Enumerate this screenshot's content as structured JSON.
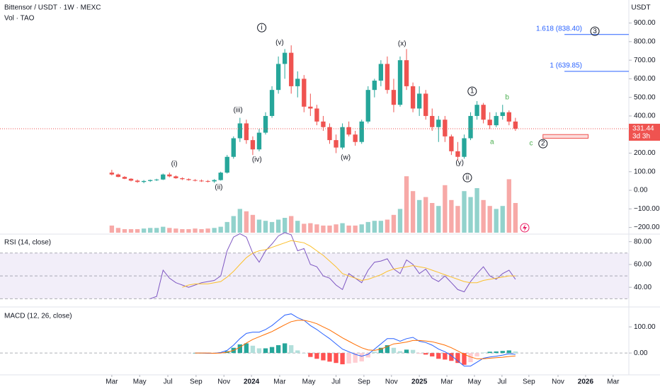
{
  "chart_data": {
    "type": "candlestick",
    "title": "Bittensor / USDT · 1W · MEXC",
    "subtitle": "Vol · TAO",
    "currency": "USDT",
    "xlim": [
      -34.9,
      161.4
    ],
    "xticks": [
      {
        "value": 0,
        "label": "Mar"
      },
      {
        "value": 8.7,
        "label": "May"
      },
      {
        "value": 17.5,
        "label": "Jul"
      },
      {
        "value": 26.3,
        "label": "Sep"
      },
      {
        "value": 35,
        "label": "Nov"
      },
      {
        "value": 43.6,
        "label": "2024"
      },
      {
        "value": 52.4,
        "label": "Mar"
      },
      {
        "value": 61.5,
        "label": "May"
      },
      {
        "value": 70,
        "label": "Jul"
      },
      {
        "value": 78.7,
        "label": "Sep"
      },
      {
        "value": 87.3,
        "label": "Nov"
      },
      {
        "value": 96,
        "label": "2025"
      },
      {
        "value": 104.6,
        "label": "Mar"
      },
      {
        "value": 113.2,
        "label": "May"
      },
      {
        "value": 121.8,
        "label": "Jul"
      },
      {
        "value": 130.2,
        "label": "Sep"
      },
      {
        "value": 139.3,
        "label": "Nov"
      },
      {
        "value": 147.9,
        "label": "2026"
      },
      {
        "value": 156.5,
        "label": "Mar"
      }
    ],
    "ylim": [
      -232,
      1024
    ],
    "yticks": [
      {
        "value": 900,
        "label": "900.00"
      },
      {
        "value": 800,
        "label": "800.00"
      },
      {
        "value": 700,
        "label": "700.00"
      },
      {
        "value": 600,
        "label": "600.00"
      },
      {
        "value": 500,
        "label": "500.00"
      },
      {
        "value": 400,
        "label": "400.00"
      },
      {
        "value": 300,
        "label": "300.00"
      },
      {
        "value": 200,
        "label": "200.00"
      },
      {
        "value": 100,
        "label": "100.00"
      },
      {
        "value": 0,
        "label": "0.00"
      },
      {
        "value": -100,
        "label": "−100.00"
      },
      {
        "value": -200,
        "label": "−200.00"
      }
    ],
    "up_color": "#26a69a",
    "down_color": "#ef5350",
    "x": [
      0,
      2,
      4,
      6,
      8,
      10,
      12,
      14,
      16,
      18,
      20,
      22,
      24,
      26,
      28,
      30,
      32,
      34,
      36,
      38,
      40,
      42,
      44,
      46,
      48,
      50,
      52,
      54,
      56,
      58,
      60,
      62,
      64,
      66,
      68,
      70,
      72,
      74,
      76,
      78,
      80,
      82,
      84,
      86,
      88,
      90,
      92,
      94,
      96,
      98,
      100,
      102,
      104,
      106,
      108,
      110,
      112,
      114,
      116,
      118,
      120,
      122,
      124,
      126
    ],
    "open": [
      95,
      85,
      72,
      62,
      52,
      45,
      50,
      55,
      58,
      85,
      75,
      65,
      60,
      55,
      52,
      50,
      48,
      55,
      95,
      180,
      280,
      360,
      270,
      220,
      310,
      400,
      540,
      680,
      740,
      560,
      600,
      450,
      440,
      370,
      340,
      270,
      230,
      340,
      300,
      260,
      370,
      540,
      590,
      680,
      540,
      460,
      700,
      560,
      440,
      520,
      400,
      340,
      380,
      290,
      210,
      180,
      280,
      400,
      460,
      380,
      350,
      400,
      420,
      370
    ],
    "high": [
      110,
      90,
      76,
      65,
      58,
      55,
      58,
      62,
      90,
      95,
      80,
      70,
      64,
      60,
      58,
      55,
      60,
      100,
      190,
      290,
      390,
      380,
      290,
      330,
      420,
      560,
      720,
      760,
      780,
      640,
      620,
      520,
      460,
      400,
      360,
      300,
      360,
      370,
      320,
      380,
      560,
      600,
      700,
      720,
      600,
      720,
      760,
      580,
      560,
      540,
      440,
      400,
      400,
      300,
      260,
      300,
      420,
      480,
      470,
      420,
      420,
      460,
      430,
      390
    ],
    "low": [
      80,
      70,
      60,
      48,
      40,
      38,
      45,
      50,
      55,
      70,
      62,
      55,
      52,
      48,
      45,
      42,
      40,
      52,
      90,
      170,
      260,
      250,
      190,
      210,
      300,
      390,
      520,
      600,
      520,
      500,
      420,
      400,
      350,
      320,
      250,
      200,
      220,
      290,
      240,
      250,
      360,
      500,
      560,
      520,
      420,
      450,
      540,
      420,
      400,
      380,
      320,
      260,
      260,
      190,
      160,
      170,
      270,
      380,
      360,
      330,
      340,
      380,
      350,
      320
    ],
    "close": [
      85,
      72,
      62,
      52,
      45,
      50,
      55,
      58,
      85,
      75,
      65,
      60,
      55,
      52,
      50,
      48,
      55,
      95,
      180,
      280,
      360,
      270,
      220,
      310,
      400,
      540,
      680,
      740,
      560,
      600,
      450,
      440,
      370,
      340,
      270,
      230,
      340,
      300,
      260,
      370,
      540,
      590,
      680,
      540,
      460,
      700,
      560,
      440,
      520,
      400,
      340,
      380,
      290,
      210,
      180,
      280,
      400,
      460,
      380,
      350,
      400,
      420,
      370,
      331.44
    ],
    "volume": [
      12,
      8,
      6,
      6,
      6,
      7,
      8,
      8,
      10,
      8,
      7,
      6,
      6,
      7,
      6,
      7,
      8,
      10,
      18,
      28,
      40,
      36,
      30,
      22,
      20,
      18,
      22,
      25,
      28,
      20,
      15,
      16,
      14,
      12,
      12,
      14,
      16,
      12,
      12,
      14,
      18,
      20,
      20,
      22,
      30,
      40,
      95,
      70,
      55,
      60,
      50,
      45,
      80,
      55,
      45,
      70,
      60,
      75,
      55,
      45,
      40,
      45,
      90,
      50
    ],
    "volume_lim": [
      0,
      100
    ],
    "last_price": {
      "value": 331.44,
      "label": "331.44"
    },
    "countdown": "3d 3h",
    "fib_color": "#2962ff",
    "fib_x_start": 141.3,
    "fib_levels": [
      {
        "value": 838.4,
        "label": "1.618 (838.40)"
      },
      {
        "value": 639.85,
        "label": "1 (639.85)"
      }
    ],
    "target_zone": {
      "low": 280,
      "high": 300,
      "x_start": 134.6,
      "x_end": 148.7
    },
    "annotations": [
      {
        "text": "(i)",
        "x": 19.5,
        "y": 141
      },
      {
        "text": "i",
        "x": 46.8,
        "y": 875,
        "circled": true
      },
      {
        "text": "(ii)",
        "x": 33.4,
        "y": 15
      },
      {
        "text": "(iii)",
        "x": 39.4,
        "y": 430
      },
      {
        "text": "(iv)",
        "x": 45.3,
        "y": 164
      },
      {
        "text": "(v)",
        "x": 52.4,
        "y": 795
      },
      {
        "text": "(w)",
        "x": 73,
        "y": 175
      },
      {
        "text": "(x)",
        "x": 90.6,
        "y": 788
      },
      {
        "text": "(y)",
        "x": 108.6,
        "y": 148
      },
      {
        "text": "ii",
        "x": 111,
        "y": 68,
        "circled": true
      },
      {
        "text": "1",
        "x": 112.5,
        "y": 533,
        "circled": true
      },
      {
        "text": "a",
        "x": 118.7,
        "y": 259,
        "color": "#4caf50"
      },
      {
        "text": "b",
        "x": 123.4,
        "y": 499,
        "color": "#4caf50"
      },
      {
        "text": "c",
        "x": 130.9,
        "y": 251,
        "color": "#4caf50"
      },
      {
        "text": "2",
        "x": 134.6,
        "y": 251,
        "circled": true
      },
      {
        "text": "3",
        "x": 150.8,
        "y": 856,
        "circled": true
      }
    ],
    "rsi": {
      "title": "RSI (14, close)",
      "ylim": [
        24,
        86
      ],
      "yticks": [
        {
          "value": 80,
          "label": "80.00"
        },
        {
          "value": 60,
          "label": "60.00"
        },
        {
          "value": 40,
          "label": "40.00"
        }
      ],
      "band": [
        30,
        70
      ],
      "mid": 50,
      "color": "#7e57c2",
      "ma_color": "#fbc02d",
      "values": [
        null,
        null,
        null,
        null,
        null,
        null,
        30,
        32,
        55,
        48,
        44,
        42,
        40,
        42,
        44,
        45,
        46,
        50,
        72,
        84,
        87,
        84,
        70,
        62,
        72,
        78,
        85,
        88,
        86,
        72,
        74,
        60,
        58,
        50,
        48,
        42,
        38,
        52,
        48,
        44,
        55,
        62,
        63,
        65,
        56,
        52,
        64,
        60,
        52,
        56,
        48,
        45,
        50,
        44,
        38,
        36,
        45,
        52,
        58,
        50,
        47,
        52,
        55,
        47
      ],
      "ma": [
        null,
        null,
        null,
        null,
        null,
        null,
        null,
        null,
        null,
        null,
        null,
        40,
        42,
        43,
        43,
        43,
        44,
        45,
        49,
        54,
        60,
        66,
        70,
        72,
        73,
        75,
        77,
        79,
        81,
        80,
        79,
        76,
        72,
        68,
        63,
        58,
        52,
        50,
        48,
        46,
        47,
        49,
        51,
        54,
        56,
        57,
        58,
        59,
        58,
        57,
        55,
        53,
        51,
        49,
        47,
        45,
        44,
        44,
        46,
        47,
        48,
        49,
        50,
        50
      ]
    },
    "macd": {
      "title": "MACD (12, 26, close)",
      "ylim": [
        -78,
        168
      ],
      "yticks": [
        {
          "value": 100,
          "label": "100.00"
        },
        {
          "value": 0,
          "label": "0.00"
        }
      ],
      "macd_color": "#2962ff",
      "signal_color": "#ff6d00",
      "macd": [
        null,
        null,
        null,
        null,
        null,
        null,
        null,
        null,
        null,
        null,
        null,
        null,
        null,
        0,
        0,
        -1,
        -1,
        2,
        10,
        30,
        55,
        75,
        80,
        80,
        90,
        105,
        125,
        145,
        150,
        135,
        125,
        105,
        90,
        72,
        55,
        35,
        15,
        5,
        -5,
        -12,
        -5,
        15,
        35,
        55,
        55,
        45,
        55,
        60,
        45,
        40,
        30,
        15,
        5,
        -10,
        -30,
        -50,
        -50,
        -35,
        -20,
        -15,
        -12,
        -8,
        -3,
        -5
      ],
      "signal": [
        null,
        null,
        null,
        null,
        null,
        null,
        null,
        null,
        null,
        null,
        null,
        null,
        null,
        0,
        0,
        0,
        -1,
        0,
        3,
        10,
        22,
        38,
        52,
        62,
        72,
        82,
        95,
        108,
        120,
        125,
        125,
        120,
        112,
        100,
        88,
        73,
        58,
        45,
        32,
        20,
        12,
        10,
        15,
        25,
        35,
        38,
        42,
        48,
        48,
        46,
        43,
        37,
        30,
        20,
        8,
        -5,
        -15,
        -22,
        -22,
        -20,
        -18,
        -16,
        -13,
        -11
      ],
      "histogram": [
        null,
        null,
        null,
        null,
        null,
        null,
        null,
        null,
        null,
        null,
        null,
        null,
        null,
        0,
        0,
        -1,
        0,
        2,
        7,
        20,
        33,
        37,
        28,
        18,
        18,
        23,
        30,
        37,
        30,
        10,
        0,
        -15,
        -22,
        -28,
        -33,
        -38,
        -43,
        -40,
        -37,
        -32,
        -17,
        5,
        20,
        30,
        20,
        7,
        13,
        12,
        -3,
        -6,
        -13,
        -22,
        -25,
        -30,
        -38,
        -45,
        -35,
        -13,
        2,
        5,
        6,
        8,
        10,
        6
      ]
    }
  }
}
